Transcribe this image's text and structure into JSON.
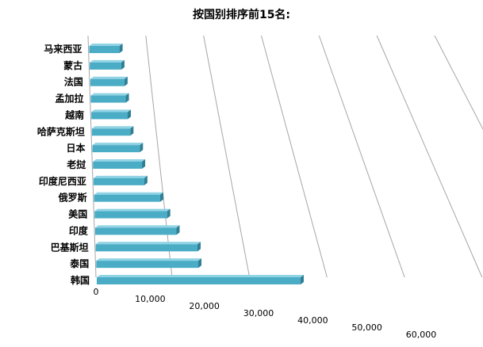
{
  "chart_data": {
    "type": "bar",
    "orientation": "horizontal",
    "title": "按国别排序前15名:",
    "categories": [
      "马来西亚",
      "蒙古",
      "法国",
      "孟加拉",
      "越南",
      "哈萨克斯坦",
      "日本",
      "老挝",
      "印度尼西亚",
      "俄罗斯",
      "美国",
      "印度",
      "巴基斯坦",
      "泰国",
      "韩国"
    ],
    "values": [
      5200,
      5300,
      5600,
      5600,
      5700,
      5900,
      7100,
      7200,
      7300,
      9300,
      10000,
      11000,
      13500,
      13300,
      26000
    ],
    "xlim": [
      0,
      60000
    ],
    "xticks": [
      "0",
      "10,000",
      "20,000",
      "30,000",
      "40,000",
      "50,000",
      "60,000"
    ],
    "grid": true,
    "bar_color": "#4bacc6"
  }
}
